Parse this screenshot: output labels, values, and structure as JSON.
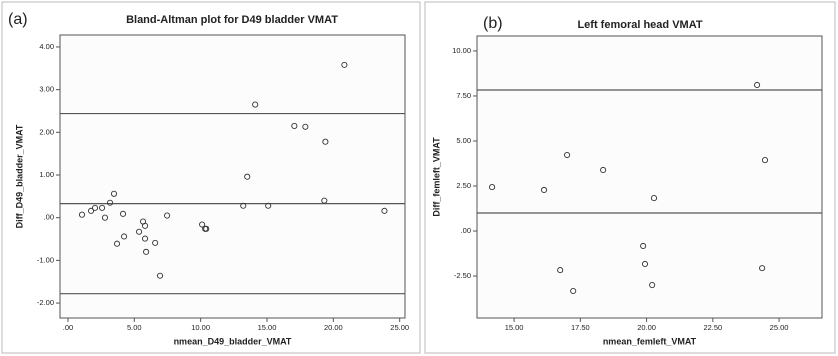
{
  "chart_data": [
    {
      "type": "scatter",
      "panel_label": "(a)",
      "title": "Bland-Altman plot for D49 bladder VMAT",
      "x_label": "nmean_D49_bladder_VMAT",
      "y_label": "Diff_D49_bladder_VMAT",
      "x": [
        1.06,
        1.74,
        2.04,
        2.57,
        2.79,
        3.17,
        3.47,
        3.7,
        4.15,
        4.23,
        5.36,
        5.66,
        5.81,
        5.81,
        5.89,
        6.57,
        6.94,
        7.47,
        10.11,
        10.34,
        10.42,
        13.21,
        13.51,
        14.11,
        15.09,
        17.06,
        17.89,
        19.4,
        19.32,
        20.83,
        23.85
      ],
      "values": [
        0.07,
        0.16,
        0.23,
        0.23,
        0.0,
        0.35,
        0.56,
        -0.61,
        0.09,
        -0.44,
        -0.33,
        -0.09,
        -0.19,
        -0.49,
        -0.8,
        -0.59,
        -1.36,
        0.05,
        -0.16,
        -0.26,
        -0.26,
        0.28,
        0.96,
        2.65,
        0.28,
        2.15,
        2.13,
        1.78,
        0.4,
        3.58,
        0.16
      ],
      "hlines": [
        2.44,
        0.33,
        -1.78
      ],
      "xlim": [
        -0.6,
        25.4
      ],
      "ylim": [
        -2.35,
        4.28
      ],
      "xticks": [
        {
          "value": 0,
          "label": ".00"
        },
        {
          "value": 5,
          "label": "5.00"
        },
        {
          "value": 10,
          "label": "10.00"
        },
        {
          "value": 15,
          "label": "15.00"
        },
        {
          "value": 20,
          "label": "20.00"
        },
        {
          "value": 25,
          "label": "25.00"
        }
      ],
      "yticks": [
        {
          "value": 4,
          "label": "4.00"
        },
        {
          "value": 3,
          "label": "3.00"
        },
        {
          "value": 2,
          "label": "2.00"
        },
        {
          "value": 1,
          "label": "1.00"
        },
        {
          "value": 0,
          "label": ".00"
        },
        {
          "value": -1,
          "label": "-1.00"
        },
        {
          "value": -2,
          "label": "-2.00"
        }
      ],
      "color": "#333333"
    },
    {
      "type": "scatter",
      "panel_label": "(b)",
      "title": "Left femoral head VMAT",
      "x_label": "nmean_femleft_VMAT",
      "y_label": "Diff_femleft_VMAT",
      "x": [
        14.17,
        16.13,
        16.74,
        17.0,
        17.23,
        18.36,
        19.87,
        19.94,
        20.21,
        20.28,
        24.17,
        24.36,
        24.47
      ],
      "values": [
        2.44,
        2.28,
        -2.17,
        4.22,
        -3.33,
        3.39,
        -0.83,
        -1.83,
        -3.0,
        1.83,
        8.11,
        -2.06,
        3.94
      ],
      "hlines": [
        7.83,
        1.0
      ],
      "xlim": [
        13.6,
        26.62
      ],
      "ylim": [
        -4.83,
        10.83
      ],
      "xticks": [
        {
          "value": 15,
          "label": "15.00"
        },
        {
          "value": 17.5,
          "label": "17.50"
        },
        {
          "value": 20,
          "label": "20.00"
        },
        {
          "value": 22.5,
          "label": "22.50"
        },
        {
          "value": 25,
          "label": "25.00"
        }
      ],
      "yticks": [
        {
          "value": 10,
          "label": "10.00"
        },
        {
          "value": 7.5,
          "label": "7.50"
        },
        {
          "value": 5,
          "label": "5.00"
        },
        {
          "value": 2.5,
          "label": "2.50"
        },
        {
          "value": 0,
          "label": ".00"
        },
        {
          "value": -2.5,
          "label": "-2.50"
        }
      ],
      "color": "#333333"
    }
  ]
}
